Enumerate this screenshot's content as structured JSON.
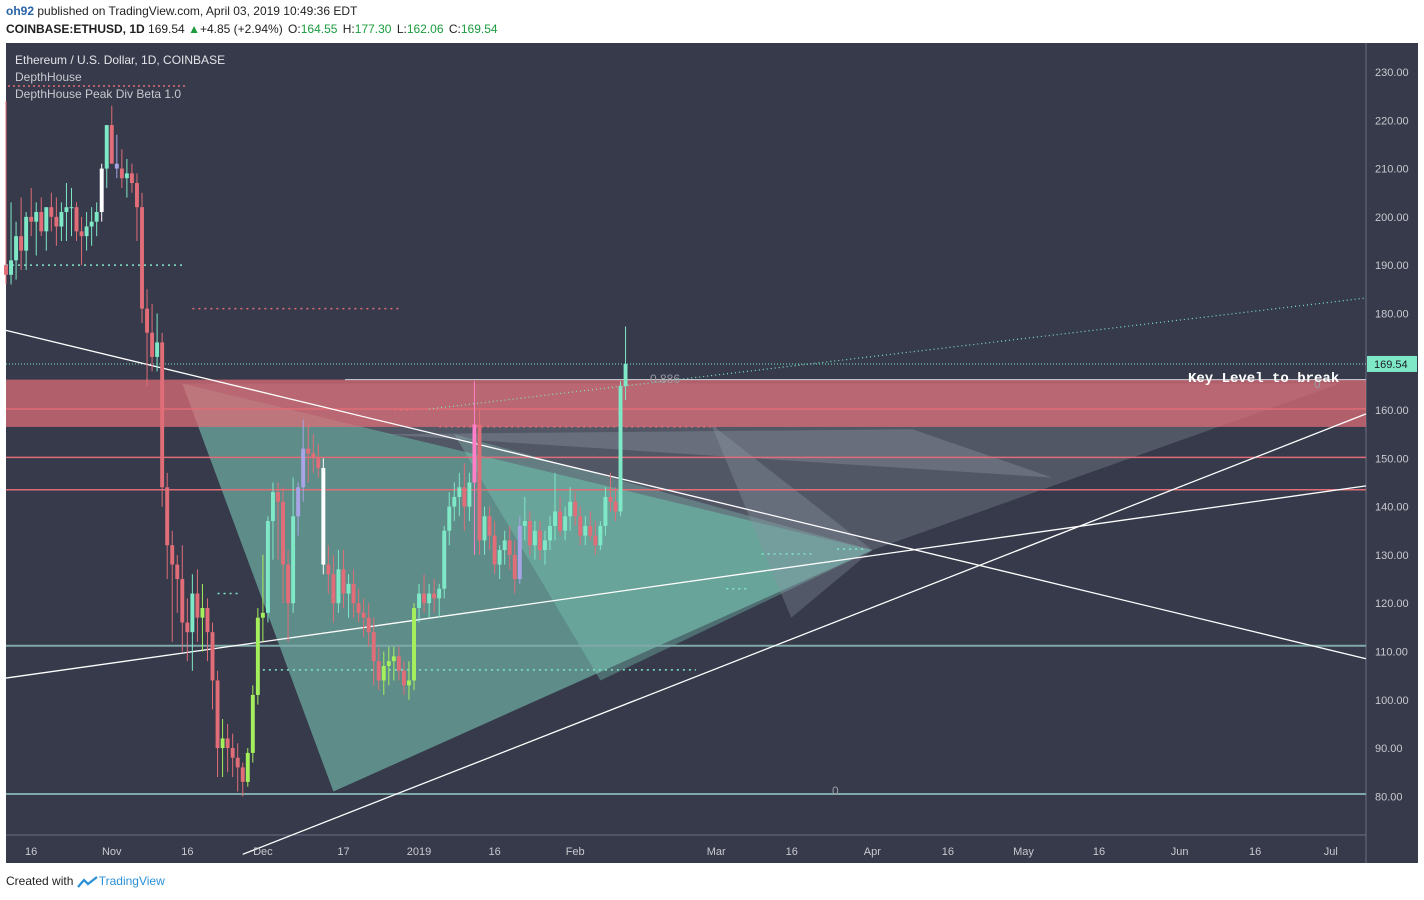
{
  "header": {
    "author": "oh92",
    "published_text": "published on TradingView.com, April 03, 2019 10:49:36 EDT",
    "symbol": "COINBASE:ETHUSD, 1D",
    "last": "169.54",
    "change": "+4.85 (+2.94%)",
    "o_label": "O:",
    "o": "164.55",
    "h_label": "H:",
    "h": "177.30",
    "l_label": "L:",
    "l": "162.06",
    "c_label": "C:",
    "c": "169.54"
  },
  "legend": {
    "title": "Ethereum / U.S. Dollar, 1D, COINBASE",
    "indicator1": "DepthHouse",
    "indicator2": "DepthHouse Peak Div Beta 1.0"
  },
  "annotations": {
    "key_level": "Key Level to break",
    "fib_886": "0.886",
    "fib_0": "0",
    "fib_right": "0",
    "price_tag": "169.54"
  },
  "footer": {
    "created_with": "Created with",
    "brand": "TradingView"
  },
  "colors": {
    "background": "#363a4b",
    "bull": "#7fe8c7",
    "bear": "#e06d77",
    "green_accent": "#a4ef5c",
    "white_candle": "#ffffff",
    "purple_candle": "#a9a4e6",
    "resistance_zone": "#e06d77",
    "triangle_fill": "#7fd1bd",
    "teal_level": "#7fa8a8"
  },
  "chart_data": {
    "type": "candlestick",
    "title": "Ethereum / U.S. Dollar, 1D, COINBASE",
    "ylim": [
      72,
      236
    ],
    "y_ticks": [
      80,
      90,
      100,
      110,
      120,
      130,
      140,
      150,
      160,
      170,
      180,
      190,
      200,
      210,
      220,
      230
    ],
    "y_tick_labels": [
      "80.00",
      "90.00",
      "100.00",
      "110.00",
      "120.00",
      "130.00",
      "140.00",
      "150.00",
      "160.00",
      "170.00",
      "180.00",
      "190.00",
      "200.00",
      "210.00",
      "220.00",
      "230.00"
    ],
    "x_start": "2018-10-11",
    "x_end": "2019-07-08",
    "x_ticks": [
      {
        "date": "2018-10-16",
        "label": "16"
      },
      {
        "date": "2018-11-01",
        "label": "Nov"
      },
      {
        "date": "2018-11-16",
        "label": "16"
      },
      {
        "date": "2018-12-01",
        "label": "Dec"
      },
      {
        "date": "2018-12-17",
        "label": "17"
      },
      {
        "date": "2019-01-01",
        "label": "2019"
      },
      {
        "date": "2019-01-16",
        "label": "16"
      },
      {
        "date": "2019-02-01",
        "label": "Feb"
      },
      {
        "date": "2019-03-01",
        "label": "Mar"
      },
      {
        "date": "2019-03-16",
        "label": "16"
      },
      {
        "date": "2019-04-01",
        "label": "Apr"
      },
      {
        "date": "2019-04-16",
        "label": "16"
      },
      {
        "date": "2019-05-01",
        "label": "May"
      },
      {
        "date": "2019-05-16",
        "label": "16"
      },
      {
        "date": "2019-06-01",
        "label": "Jun"
      },
      {
        "date": "2019-06-16",
        "label": "16"
      },
      {
        "date": "2019-07-01",
        "label": "Jul"
      }
    ],
    "candles_start": "2018-10-11",
    "candles": [
      [
        190,
        224,
        186,
        188
      ],
      [
        188,
        203,
        186,
        191
      ],
      [
        191,
        199,
        187,
        196
      ],
      [
        196,
        204,
        189,
        193
      ],
      [
        193,
        201,
        189,
        200
      ],
      [
        200,
        206,
        196,
        199
      ],
      [
        199,
        203,
        192,
        201
      ],
      [
        201,
        204,
        196,
        197
      ],
      [
        197,
        202,
        193,
        202
      ],
      [
        202,
        205,
        197,
        200
      ],
      [
        200,
        204,
        194,
        198
      ],
      [
        198,
        203,
        195,
        201
      ],
      [
        201,
        207,
        195,
        202
      ],
      [
        202,
        206,
        196,
        202
      ],
      [
        202,
        203,
        195,
        197
      ],
      [
        197,
        200,
        190,
        196
      ],
      [
        196,
        201,
        193,
        198
      ],
      [
        198,
        202,
        194,
        199
      ],
      [
        199,
        203,
        196,
        201
      ],
      [
        201,
        211,
        199,
        210
      ],
      [
        210,
        219,
        206,
        219
      ],
      [
        219,
        223,
        212,
        211
      ],
      [
        211,
        217,
        208,
        210
      ],
      [
        210,
        214,
        206,
        208
      ],
      [
        208,
        212,
        204,
        209
      ],
      [
        209,
        211,
        205,
        207
      ],
      [
        207,
        209,
        195,
        202
      ],
      [
        202,
        205,
        178,
        181
      ],
      [
        181,
        185,
        165,
        176
      ],
      [
        176,
        182,
        168,
        171
      ],
      [
        171,
        180,
        168,
        174
      ],
      [
        174,
        176,
        140,
        144
      ],
      [
        144,
        147,
        125,
        132
      ],
      [
        132,
        135,
        112,
        128
      ],
      [
        128,
        130,
        118,
        125
      ],
      [
        125,
        132,
        110,
        116
      ],
      [
        116,
        121,
        108,
        114
      ],
      [
        114,
        126,
        106,
        122
      ],
      [
        122,
        127,
        112,
        117
      ],
      [
        117,
        124,
        110,
        119
      ],
      [
        119,
        121,
        108,
        114
      ],
      [
        114,
        116,
        98,
        104
      ],
      [
        104,
        106,
        84,
        90
      ],
      [
        90,
        96,
        84,
        92
      ],
      [
        92,
        95,
        85,
        90
      ],
      [
        90,
        93,
        84,
        88
      ],
      [
        88,
        91,
        81,
        86
      ],
      [
        86,
        87,
        80,
        83
      ],
      [
        83,
        90,
        82,
        89
      ],
      [
        89,
        103,
        87,
        101
      ],
      [
        101,
        119,
        99,
        117
      ],
      [
        117,
        130,
        112,
        118
      ],
      [
        118,
        138,
        116,
        137
      ],
      [
        137,
        145,
        129,
        143
      ],
      [
        143,
        145,
        129,
        141
      ],
      [
        141,
        144,
        120,
        128
      ],
      [
        128,
        131,
        112,
        120
      ],
      [
        120,
        146,
        118,
        138
      ],
      [
        138,
        145,
        134,
        144
      ],
      [
        144,
        158,
        141,
        152
      ],
      [
        152,
        157,
        145,
        151
      ],
      [
        151,
        155,
        147,
        150
      ],
      [
        150,
        153,
        146,
        148
      ],
      [
        148,
        150,
        126,
        128
      ],
      [
        128,
        132,
        122,
        126
      ],
      [
        126,
        130,
        116,
        120
      ],
      [
        120,
        131,
        118,
        127
      ],
      [
        127,
        131,
        119,
        122
      ],
      [
        122,
        126,
        117,
        124
      ],
      [
        124,
        127,
        117,
        120
      ],
      [
        120,
        123,
        116,
        118
      ],
      [
        118,
        121,
        113,
        117
      ],
      [
        117,
        120,
        111,
        114
      ],
      [
        114,
        117,
        103,
        108
      ],
      [
        108,
        111,
        102,
        104
      ],
      [
        104,
        110,
        101,
        107
      ],
      [
        107,
        111,
        103,
        108
      ],
      [
        108,
        111,
        104,
        109
      ],
      [
        109,
        111,
        104,
        106
      ],
      [
        106,
        108,
        101,
        103
      ],
      [
        103,
        108,
        100,
        104
      ],
      [
        104,
        120,
        102,
        119
      ],
      [
        119,
        124,
        116,
        122
      ],
      [
        122,
        126,
        118,
        120
      ],
      [
        120,
        124,
        117,
        122
      ],
      [
        122,
        125,
        118,
        121
      ],
      [
        121,
        124,
        117,
        123
      ],
      [
        123,
        136,
        121,
        135
      ],
      [
        135,
        143,
        132,
        140
      ],
      [
        140,
        145,
        137,
        142
      ],
      [
        142,
        147,
        138,
        144
      ],
      [
        144,
        149,
        135,
        140
      ],
      [
        140,
        147,
        137,
        145
      ],
      [
        145,
        166,
        130,
        157
      ],
      [
        157,
        160,
        130,
        133
      ],
      [
        133,
        140,
        130,
        138
      ],
      [
        138,
        140,
        131,
        134
      ],
      [
        134,
        137,
        126,
        128
      ],
      [
        128,
        132,
        125,
        131
      ],
      [
        131,
        135,
        128,
        133
      ],
      [
        133,
        136,
        127,
        130
      ],
      [
        130,
        133,
        122,
        125
      ],
      [
        125,
        138,
        124,
        136
      ],
      [
        136,
        142,
        133,
        137
      ],
      [
        137,
        139,
        130,
        132
      ],
      [
        132,
        137,
        129,
        135
      ],
      [
        135,
        137,
        129,
        131
      ],
      [
        131,
        135,
        128,
        133
      ],
      [
        133,
        138,
        131,
        136
      ],
      [
        136,
        147,
        133,
        139
      ],
      [
        139,
        142,
        134,
        135
      ],
      [
        135,
        140,
        133,
        138
      ],
      [
        138,
        144,
        135,
        141
      ],
      [
        141,
        143,
        136,
        138
      ],
      [
        138,
        140,
        132,
        134
      ],
      [
        134,
        138,
        132,
        136
      ],
      [
        136,
        139,
        133,
        134
      ],
      [
        134,
        137,
        130,
        132
      ],
      [
        132,
        137,
        131,
        136
      ],
      [
        136,
        144,
        134,
        142
      ],
      [
        142,
        147,
        139,
        141
      ],
      [
        141,
        144,
        137,
        139
      ],
      [
        139,
        166,
        138,
        165
      ],
      [
        165,
        177.3,
        162.06,
        169.54
      ]
    ],
    "levels": [
      {
        "name": "resistance-zone",
        "from": 156.5,
        "to": 166.3
      },
      {
        "name": "resistance-mid",
        "value": 160.2
      },
      {
        "name": "red-level-150",
        "value": 150.2
      },
      {
        "name": "red-level-143",
        "value": 143.5
      },
      {
        "name": "teal-level-111",
        "value": 111.2
      },
      {
        "name": "teal-level-80",
        "value": 80.5
      },
      {
        "name": "last-price",
        "value": 169.54
      }
    ],
    "trendlines": [
      {
        "name": "descending-white",
        "from": [
          "2018-10-11",
          176.5
        ],
        "to": [
          "2019-07-08",
          108.5
        ]
      },
      {
        "name": "ascending-white-upper",
        "from": [
          "2018-10-11",
          104.5
        ],
        "to": [
          "2019-07-08",
          144.3
        ]
      },
      {
        "name": "ascending-white-lower",
        "from": [
          "2018-11-27",
          68
        ],
        "to": [
          "2019-07-08",
          159.2
        ]
      },
      {
        "name": "dotted-upper",
        "from": [
          "2019-01-03",
          160.2
        ],
        "to": [
          "2019-07-08",
          183.2
        ]
      }
    ]
  }
}
